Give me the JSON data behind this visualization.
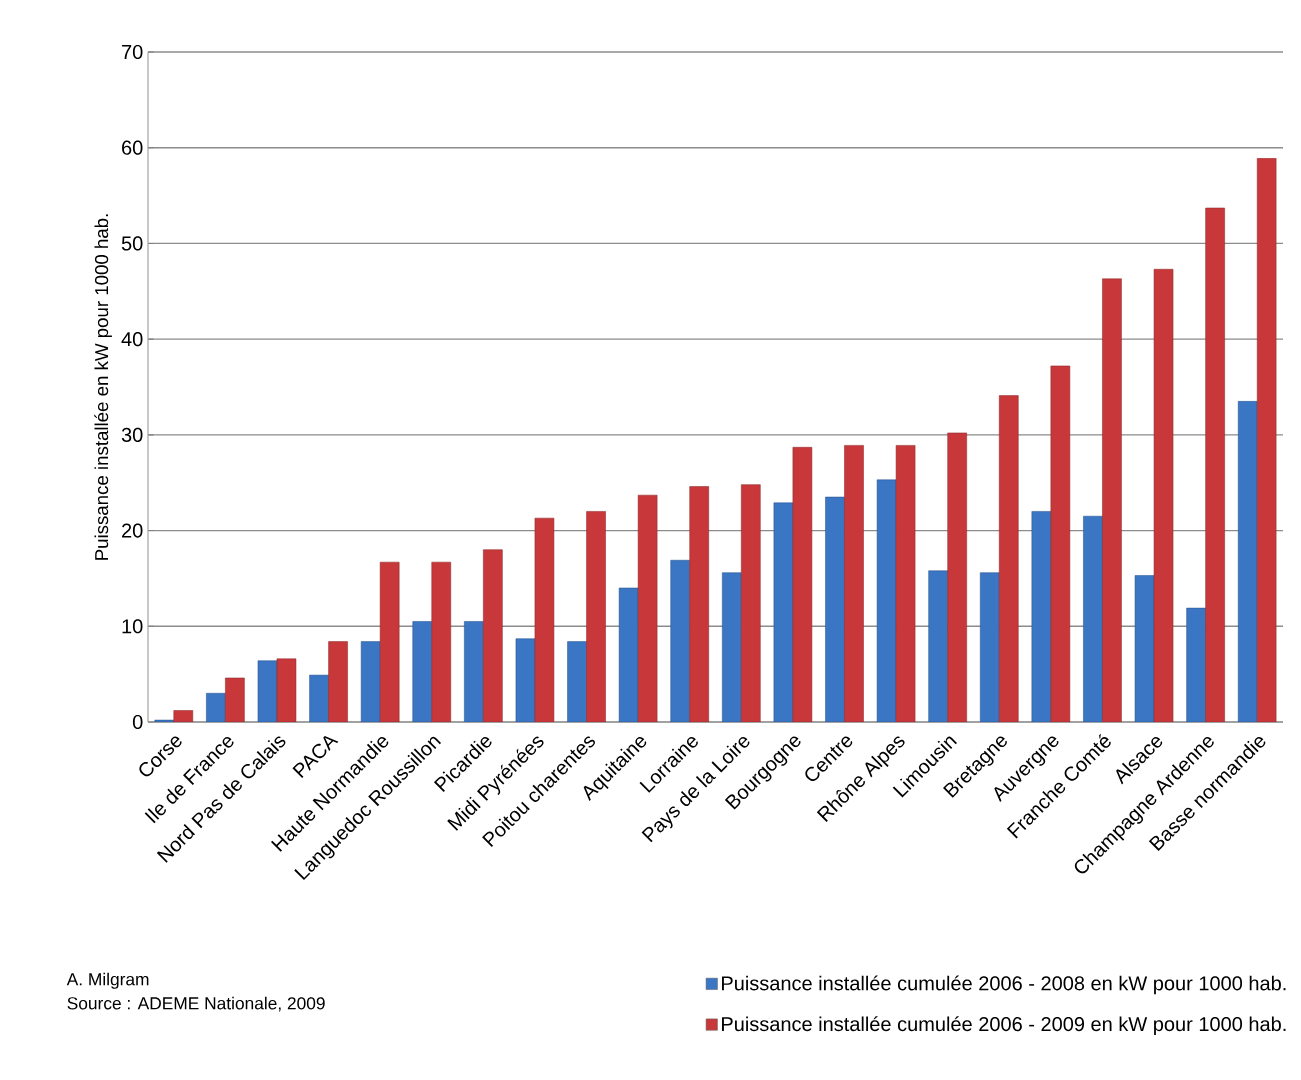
{
  "chart_data": {
    "type": "bar",
    "ylabel": "Puissance installée en kW pour 1000 hab.",
    "categories": [
      "Corse",
      "Ile de France",
      "Nord Pas de Calais",
      "PACA",
      "Haute Normandie",
      "Languedoc Roussillon",
      "Picardie",
      "Midi Pyrénées",
      "Poitou charentes",
      "Aquitaine",
      "Lorraine",
      "Pays de la Loire",
      "Bourgogne",
      "Centre",
      "Rhône Alpes",
      "Limousin",
      "Bretagne",
      "Auvergne",
      "Franche Comté",
      "Alsace",
      "Champagne Ardenne",
      "Basse normandie"
    ],
    "series": [
      {
        "name": "Puissance installée cumulée 2006 - 2008 en kW pour 1000 hab.",
        "color": "#3a76c4",
        "values": [
          0.2,
          3.0,
          6.4,
          4.9,
          8.4,
          10.5,
          10.5,
          8.7,
          8.4,
          14.0,
          16.9,
          15.6,
          22.9,
          23.5,
          25.3,
          15.8,
          15.6,
          22.0,
          21.5,
          15.3,
          11.9,
          33.5
        ]
      },
      {
        "name": "Puissance installée cumulée 2006 - 2009 en kW pour 1000 hab.",
        "color": "#c8383a",
        "values": [
          1.2,
          4.6,
          6.6,
          8.4,
          16.7,
          16.7,
          18.0,
          21.3,
          22.0,
          23.7,
          24.6,
          24.8,
          28.7,
          28.9,
          28.9,
          30.2,
          34.1,
          37.2,
          46.3,
          47.3,
          53.7,
          58.9
        ]
      }
    ],
    "ylim": [
      0,
      70
    ],
    "yticks": [
      0,
      10,
      20,
      30,
      40,
      50,
      60,
      70
    ],
    "grid": "y",
    "legend": "bottom right",
    "annotations": [
      "A. Milgram",
      "Source : ADEME Nationale, 2009"
    ]
  }
}
